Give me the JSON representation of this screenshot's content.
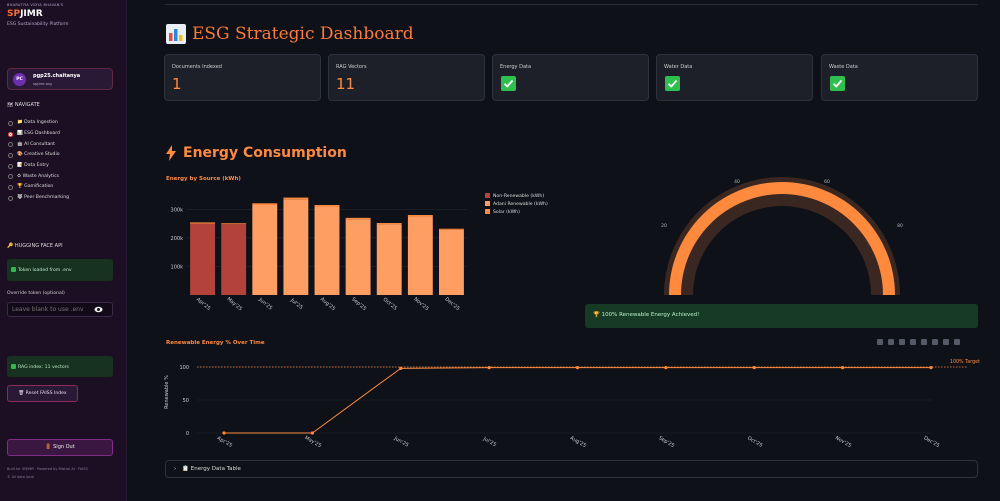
{
  "sidebar": {
    "brand_small": "BHARATIYA VIDYA BHAVAN'S",
    "brand_a": "SP",
    "brand_b": "JIMR",
    "brand_sub": "ESG Sustainability Platform",
    "user": {
      "initials": "PC",
      "name": "pgp25.chaitanya",
      "email": "spjimr.org"
    },
    "nav_title": "🗺 NAVIGATE",
    "nav_items": [
      {
        "label": "📁 Data Ingestion",
        "selected": false
      },
      {
        "label": "📊 ESG Dashboard",
        "selected": true
      },
      {
        "label": "🤖 AI Consultant",
        "selected": false
      },
      {
        "label": "🎨 Creative Studio",
        "selected": false
      },
      {
        "label": "📝 Data Entry",
        "selected": false
      },
      {
        "label": "♻ Waste Analytics",
        "selected": false
      },
      {
        "label": "🏆 Gamification",
        "selected": false
      },
      {
        "label": "🐺 Peer Benchmarking",
        "selected": false
      }
    ],
    "hf_title": "🔑 HUGGING FACE API",
    "token_status": "Token loaded from .env",
    "override_label": "Override token (optional)",
    "override_placeholder": "Leave blank to use .env",
    "rag_status": "RAG index: 11 vectors",
    "reset_label": "🗑 Reset FAISS Index",
    "signout_label": "🚪 Sign Out",
    "footer_1": "Built for SPJIMR · Powered by Mistral AI · FAISS",
    "footer_2": "© All data local"
  },
  "main": {
    "title": "ESG Strategic Dashboard",
    "metrics": [
      {
        "label": "Documents Indexed",
        "value": "1"
      },
      {
        "label": "RAG Vectors",
        "value": "11"
      },
      {
        "label": "Energy Data",
        "value": "check"
      },
      {
        "label": "Water Data",
        "value": "check"
      },
      {
        "label": "Waste Data",
        "value": "check"
      }
    ],
    "section_title": "Energy Consumption",
    "bar_chart_title": "Energy by Source (kWh)",
    "gauge_ticks": [
      "40",
      "60",
      "20",
      "80"
    ],
    "success_msg": "🏆 100% Renewable Energy Achieved!",
    "line_chart_title": "Renewable Energy % Over Time",
    "expander_label": "📋 Energy Data Table"
  },
  "chart_data": [
    {
      "type": "bar",
      "title": "Energy by Source (kWh)",
      "categories": [
        "Apr'25",
        "May'25",
        "Jun'25",
        "Jul'25",
        "Aug'25",
        "Sep'25",
        "Oct'25",
        "Nov'25",
        "Dec'25"
      ],
      "series": [
        {
          "name": "Non-Renewable (kWh)",
          "color": "#b3433a",
          "values": [
            250000,
            248000,
            0,
            0,
            0,
            0,
            0,
            0,
            0
          ]
        },
        {
          "name": "Adani Renewable (kWh)",
          "color": "#ff9e63",
          "values": [
            0,
            0,
            315000,
            335000,
            310000,
            265000,
            248000,
            275000,
            228000
          ]
        },
        {
          "name": "Solar (kWh)",
          "color": "#ff8a3d",
          "values": [
            4000,
            3000,
            6000,
            6000,
            5000,
            5000,
            4000,
            5000,
            4000
          ]
        }
      ],
      "y_ticks": [
        "100k",
        "200k",
        "300k"
      ],
      "ylim": [
        0,
        350000
      ]
    },
    {
      "type": "line",
      "title": "Renewable Energy % Over Time",
      "ylabel": "Renewable %",
      "categories": [
        "Apr'25",
        "May'25",
        "Jun'25",
        "Jul'25",
        "Aug'25",
        "Sep'25",
        "Oct'25",
        "Nov'25",
        "Dec'25"
      ],
      "values": [
        0,
        0,
        98,
        99,
        99,
        99,
        99,
        99,
        99
      ],
      "y_ticks": [
        0,
        50,
        100
      ],
      "ylim": [
        0,
        100
      ],
      "target_label": "100% Target",
      "target_value": 100,
      "color": "#ff8a3d"
    },
    {
      "type": "gauge",
      "value": 100,
      "range": [
        0,
        100
      ],
      "color": "#ff8a3d"
    }
  ]
}
